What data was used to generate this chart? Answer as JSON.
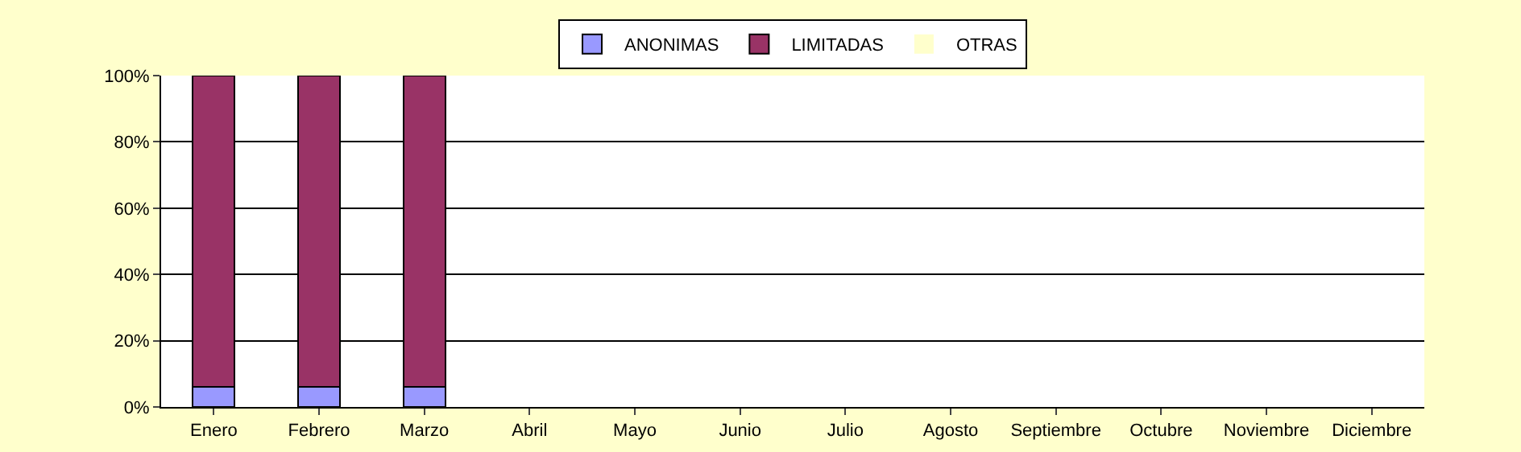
{
  "chart_data": {
    "type": "bar",
    "stacked": true,
    "categories": [
      "Enero",
      "Febrero",
      "Marzo",
      "Abril",
      "Mayo",
      "Junio",
      "Julio",
      "Agosto",
      "Septiembre",
      "Octubre",
      "Noviembre",
      "Diciembre"
    ],
    "series": [
      {
        "name": "ANONIMAS",
        "color": "#9999ff",
        "values": [
          6,
          6,
          6,
          0,
          0,
          0,
          0,
          0,
          0,
          0,
          0,
          0
        ]
      },
      {
        "name": "LIMITADAS",
        "color": "#993366",
        "values": [
          94,
          94,
          94,
          0,
          0,
          0,
          0,
          0,
          0,
          0,
          0,
          0
        ]
      },
      {
        "name": "OTRAS",
        "color": "#ffffcc",
        "values": [
          0,
          0,
          0,
          0,
          0,
          0,
          0,
          0,
          0,
          0,
          0,
          0
        ]
      }
    ],
    "ylim": [
      0,
      100
    ],
    "yticks": [
      {
        "value": 0,
        "label": "0%"
      },
      {
        "value": 20,
        "label": "20%"
      },
      {
        "value": 40,
        "label": "40%"
      },
      {
        "value": 60,
        "label": "60%"
      },
      {
        "value": 80,
        "label": "80%"
      },
      {
        "value": 100,
        "label": "100%"
      }
    ],
    "grid": "y",
    "legend": "top"
  }
}
